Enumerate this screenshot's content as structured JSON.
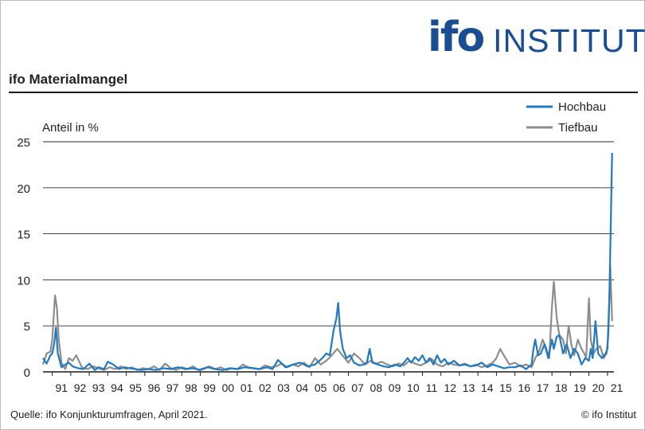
{
  "header": {
    "logo_mark": "ifo",
    "logo_text": "INSTITUT",
    "brand_color": "#1a4e93"
  },
  "title": "ifo Materialmangel",
  "footer": {
    "source": "Quelle: ifo Konjunkturumfragen, April 2021.",
    "copyright": "© ifo Institut"
  },
  "chart_data": {
    "type": "line",
    "title": "ifo Materialmangel",
    "ylabel": "Anteil in %",
    "xlabel": "",
    "ylim": [
      0,
      25
    ],
    "yticks": [
      0,
      5,
      10,
      15,
      20,
      25
    ],
    "grid": true,
    "legend_position": "top-right",
    "xlim": [
      1990.5,
      2021.35
    ],
    "xtick_labels": [
      "91",
      "92",
      "93",
      "94",
      "95",
      "96",
      "97",
      "98",
      "99",
      "00",
      "01",
      "02",
      "03",
      "04",
      "05",
      "06",
      "07",
      "08",
      "09",
      "10",
      "11",
      "12",
      "13",
      "14",
      "15",
      "16",
      "17",
      "18",
      "19",
      "20",
      "21"
    ],
    "xtick_years": [
      1991,
      1992,
      1993,
      1994,
      1995,
      1996,
      1997,
      1998,
      1999,
      2000,
      2001,
      2002,
      2003,
      2004,
      2005,
      2006,
      2007,
      2008,
      2009,
      2010,
      2011,
      2012,
      2013,
      2014,
      2015,
      2016,
      2017,
      2018,
      2019,
      2020,
      2021
    ],
    "series": [
      {
        "name": "Hochbau",
        "color": "#1f7ac2",
        "x": [
          1990.5,
          1990.7,
          1990.9,
          1991.0,
          1991.1,
          1991.2,
          1991.3,
          1991.5,
          1991.7,
          1991.9,
          1992.1,
          1992.4,
          1992.7,
          1993.0,
          1993.3,
          1993.5,
          1993.8,
          1994.0,
          1994.3,
          1994.6,
          1994.9,
          1995.2,
          1995.5,
          1995.8,
          1996.2,
          1996.6,
          1997.0,
          1997.4,
          1997.8,
          1998.2,
          1998.6,
          1999.0,
          1999.4,
          1999.8,
          2000.2,
          2000.6,
          2001.0,
          2001.4,
          2001.8,
          2002.2,
          2002.6,
          2002.9,
          2003.2,
          2003.6,
          2004.0,
          2004.4,
          2004.8,
          2005.2,
          2005.6,
          2005.8,
          2006.0,
          2006.2,
          2006.35,
          2006.45,
          2006.55,
          2006.7,
          2006.9,
          2007.1,
          2007.3,
          2007.6,
          2007.8,
          2008.0,
          2008.15,
          2008.3,
          2008.6,
          2008.9,
          2009.2,
          2009.5,
          2009.8,
          2010.0,
          2010.2,
          2010.4,
          2010.6,
          2010.8,
          2011.0,
          2011.2,
          2011.4,
          2011.6,
          2011.8,
          2012.0,
          2012.2,
          2012.4,
          2012.7,
          2013.0,
          2013.3,
          2013.6,
          2013.9,
          2014.2,
          2014.5,
          2014.8,
          2015.1,
          2015.4,
          2015.7,
          2016.0,
          2016.3,
          2016.6,
          2016.9,
          2017.0,
          2017.1,
          2017.25,
          2017.4,
          2017.6,
          2017.8,
          2018.0,
          2018.1,
          2018.25,
          2018.4,
          2018.6,
          2018.8,
          2019.0,
          2019.2,
          2019.4,
          2019.6,
          2019.8,
          2020.0,
          2020.1,
          2020.2,
          2020.35,
          2020.5,
          2020.7,
          2020.9,
          2021.0,
          2021.1,
          2021.17,
          2021.25
        ],
        "values": [
          1.5,
          0.9,
          1.8,
          2.0,
          3.0,
          4.8,
          2.0,
          0.5,
          0.8,
          1.0,
          0.6,
          0.4,
          0.3,
          0.9,
          0.2,
          0.5,
          0.3,
          1.1,
          0.8,
          0.3,
          0.5,
          0.4,
          0.3,
          0.2,
          0.3,
          0.2,
          0.4,
          0.3,
          0.5,
          0.3,
          0.4,
          0.2,
          0.5,
          0.3,
          0.2,
          0.4,
          0.3,
          0.5,
          0.4,
          0.3,
          0.5,
          0.3,
          1.3,
          0.5,
          0.8,
          1.0,
          0.6,
          0.8,
          1.5,
          2.0,
          1.8,
          4.5,
          5.8,
          7.5,
          4.5,
          2.5,
          1.5,
          1.8,
          1.0,
          0.7,
          0.8,
          1.0,
          2.5,
          1.0,
          0.8,
          0.6,
          0.5,
          0.8,
          0.6,
          1.0,
          1.5,
          1.0,
          1.6,
          1.2,
          1.8,
          1.0,
          1.5,
          0.8,
          1.8,
          1.0,
          1.4,
          0.8,
          1.2,
          0.7,
          0.8,
          0.6,
          0.7,
          1.0,
          0.5,
          0.8,
          0.6,
          0.4,
          0.5,
          0.5,
          0.7,
          0.3,
          0.8,
          2.5,
          3.5,
          1.8,
          2.0,
          3.0,
          1.5,
          3.5,
          2.5,
          3.8,
          4.0,
          2.0,
          3.0,
          1.5,
          2.5,
          2.0,
          0.8,
          1.5,
          1.2,
          2.5,
          1.5,
          5.5,
          2.0,
          1.5,
          2.0,
          2.5,
          8.0,
          15.0,
          23.8
        ]
      },
      {
        "name": "Tiefbau",
        "color": "#8d8d8d",
        "x": [
          1990.5,
          1990.7,
          1990.9,
          1991.0,
          1991.15,
          1991.25,
          1991.35,
          1991.5,
          1991.7,
          1991.9,
          1992.1,
          1992.3,
          1992.6,
          1992.9,
          1993.2,
          1993.5,
          1993.8,
          1994.1,
          1994.4,
          1994.7,
          1995.0,
          1995.3,
          1995.6,
          1995.9,
          1996.2,
          1996.5,
          1996.8,
          1997.1,
          1997.4,
          1997.7,
          1998.0,
          1998.3,
          1998.6,
          1998.9,
          1999.2,
          1999.5,
          1999.8,
          2000.1,
          2000.4,
          2000.7,
          2001.0,
          2001.3,
          2001.6,
          2001.9,
          2002.2,
          2002.5,
          2002.8,
          2003.1,
          2003.4,
          2003.7,
          2004.0,
          2004.3,
          2004.6,
          2004.9,
          2005.2,
          2005.5,
          2005.8,
          2006.1,
          2006.4,
          2006.6,
          2006.8,
          2007.0,
          2007.3,
          2007.6,
          2007.9,
          2008.2,
          2008.5,
          2008.8,
          2009.1,
          2009.4,
          2009.7,
          2010.0,
          2010.3,
          2010.6,
          2010.9,
          2011.2,
          2011.5,
          2011.8,
          2012.1,
          2012.4,
          2012.7,
          2013.0,
          2013.3,
          2013.6,
          2013.9,
          2014.2,
          2014.5,
          2014.8,
          2015.0,
          2015.2,
          2015.4,
          2015.7,
          2016.0,
          2016.3,
          2016.6,
          2016.9,
          2017.1,
          2017.3,
          2017.5,
          2017.7,
          2017.85,
          2018.0,
          2018.1,
          2018.25,
          2018.4,
          2018.6,
          2018.75,
          2018.9,
          2019.05,
          2019.2,
          2019.4,
          2019.6,
          2019.75,
          2019.85,
          2020.0,
          2020.1,
          2020.25,
          2020.4,
          2020.6,
          2020.8,
          2020.95,
          2021.05,
          2021.15,
          2021.25
        ],
        "values": [
          0.8,
          2.0,
          2.2,
          3.5,
          8.3,
          7.0,
          3.5,
          1.0,
          0.3,
          1.5,
          1.2,
          1.8,
          0.5,
          0.3,
          0.6,
          0.4,
          0.2,
          0.5,
          0.3,
          0.6,
          0.3,
          0.5,
          0.2,
          0.4,
          0.3,
          0.6,
          0.2,
          0.9,
          0.4,
          0.2,
          0.5,
          0.3,
          0.6,
          0.2,
          0.4,
          0.6,
          0.3,
          0.5,
          0.2,
          0.4,
          0.3,
          0.8,
          0.5,
          0.4,
          0.3,
          0.7,
          0.5,
          0.6,
          0.9,
          0.5,
          0.8,
          0.6,
          1.0,
          0.5,
          1.5,
          0.8,
          1.2,
          1.8,
          2.5,
          2.0,
          1.5,
          1.0,
          2.0,
          1.5,
          0.8,
          1.2,
          0.9,
          1.1,
          0.8,
          0.6,
          0.9,
          0.7,
          1.2,
          0.9,
          0.7,
          1.0,
          1.4,
          0.8,
          0.6,
          1.0,
          0.8,
          0.7,
          0.9,
          0.6,
          0.8,
          0.5,
          0.7,
          1.0,
          1.5,
          2.5,
          1.8,
          0.8,
          1.0,
          0.6,
          0.8,
          0.5,
          1.5,
          2.2,
          3.5,
          2.5,
          1.5,
          7.0,
          9.8,
          6.0,
          4.0,
          3.5,
          2.0,
          5.0,
          3.0,
          1.8,
          3.5,
          2.5,
          2.0,
          1.5,
          8.0,
          3.5,
          2.0,
          2.5,
          2.8,
          1.5,
          2.0,
          4.0,
          11.5,
          5.5
        ]
      }
    ]
  }
}
